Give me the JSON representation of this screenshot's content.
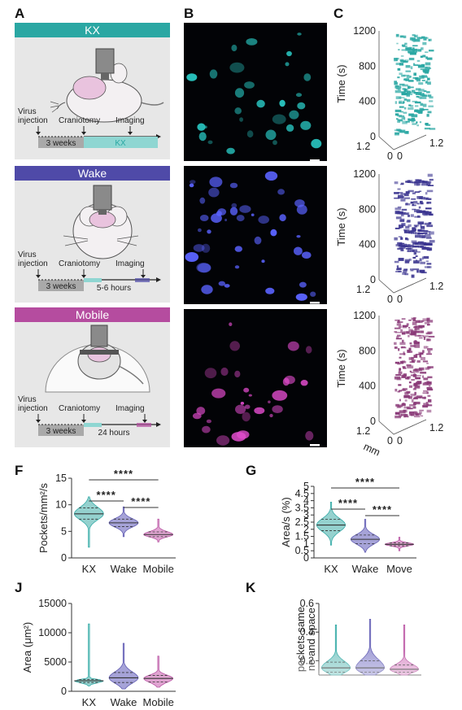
{
  "panel_labels": {
    "A": "A",
    "B": "B",
    "C": "C",
    "F": "F",
    "G": "G",
    "J": "J",
    "K": "K"
  },
  "colors": {
    "kx": "#2aa7a3",
    "wake": "#5a55b0",
    "mobile": "#b54c9f",
    "kx_violin": "#8fcfcc",
    "wake_violin": "#a29fd6",
    "mobile_violin": "#dfa0cf",
    "bg_panel": "#e7e7e7"
  },
  "schematics": [
    {
      "title": "KX",
      "bar_color": "#2aa7a3",
      "virus": "Virus\ninjection",
      "craniotomy": "Craniotomy",
      "imaging": "Imaging",
      "gap": "3 weeks",
      "period": "KX",
      "icon": "mouse-anesthetized-icon"
    },
    {
      "title": "Wake",
      "bar_color": "#4f4aa8",
      "virus": "Virus\ninjection",
      "craniotomy": "Craniotomy",
      "imaging": "Imaging",
      "gap": "3 weeks",
      "period": "5-6 hours",
      "icon": "mouse-awake-icon"
    },
    {
      "title": "Mobile",
      "bar_color": "#b54c9f",
      "virus": "Virus\ninjection",
      "craniotomy": "Craniotomy",
      "imaging": "Imaging",
      "gap": "3 weeks",
      "period": "24 hours",
      "icon": "mouse-on-ball-icon"
    }
  ],
  "chart_data": [
    {
      "panel": "C",
      "type": "scatter",
      "series": [
        {
          "color": "#2aa7a3"
        }
      ],
      "ylabel": "Time (s)",
      "zlim": [
        0,
        1200
      ],
      "zticks": [
        "0",
        "400",
        "800",
        "1200"
      ],
      "x_ticks": [
        "1.2",
        "0",
        "0",
        "1.2"
      ],
      "xlabel": ""
    },
    {
      "panel": "C",
      "type": "scatter",
      "series": [
        {
          "color": "#3b3590"
        }
      ],
      "ylabel": "Time (s)",
      "zlim": [
        0,
        1200
      ],
      "zticks": [
        "0",
        "400",
        "800",
        "1200"
      ],
      "x_ticks": [
        "1.2",
        "0",
        "0",
        "1.2"
      ],
      "xlabel": ""
    },
    {
      "panel": "C",
      "type": "scatter",
      "series": [
        {
          "color": "#8a3a78"
        }
      ],
      "ylabel": "Time (s)",
      "zlim": [
        0,
        1200
      ],
      "zticks": [
        "0",
        "400",
        "800",
        "1200"
      ],
      "x_ticks": [
        "1.2",
        "0",
        "0",
        "1.2"
      ],
      "xlabel": "mm"
    },
    {
      "panel": "F",
      "type": "violin",
      "categories": [
        "KX",
        "Wake",
        "Mobile"
      ],
      "ylabel": "Pockets/mm²/s",
      "ylim": [
        0,
        15
      ],
      "yticks": [
        "0",
        "5",
        "10",
        "15"
      ],
      "series": [
        {
          "median": 8.3,
          "q1": 7.3,
          "q3": 9.4,
          "min": 2.0,
          "max": 11.5
        },
        {
          "median": 6.6,
          "q1": 5.9,
          "q3": 7.3,
          "min": 4.0,
          "max": 9.6
        },
        {
          "median": 4.4,
          "q1": 4.0,
          "q3": 4.9,
          "min": 3.0,
          "max": 7.3
        }
      ],
      "annotations": [
        {
          "from": 0,
          "to": 2,
          "text": "****"
        },
        {
          "from": 0,
          "to": 1,
          "text": "****"
        },
        {
          "from": 1,
          "to": 2,
          "text": "****"
        }
      ]
    },
    {
      "panel": "G",
      "type": "violin",
      "categories": [
        "KX",
        "Wake",
        "Move"
      ],
      "ylabel": "Area/s (%)",
      "ylim": [
        0,
        5
      ],
      "yticks": [
        "0",
        "0.5",
        "1",
        "1.5",
        "2",
        "2.5",
        "3",
        "3.5",
        "4",
        "4.5",
        "5"
      ],
      "series": [
        {
          "median": 2.3,
          "q1": 1.9,
          "q3": 2.7,
          "min": 0.9,
          "max": 3.9
        },
        {
          "median": 1.3,
          "q1": 1.0,
          "q3": 1.6,
          "min": 0.4,
          "max": 2.7
        },
        {
          "median": 0.95,
          "q1": 0.85,
          "q3": 1.05,
          "min": 0.5,
          "max": 1.45
        }
      ],
      "annotations": [
        {
          "from": 0,
          "to": 2,
          "text": "****"
        },
        {
          "from": 0,
          "to": 1,
          "text": "****"
        },
        {
          "from": 1,
          "to": 2,
          "text": "****"
        }
      ]
    },
    {
      "panel": "J",
      "type": "violin",
      "categories": [
        "KX",
        "Wake",
        "Mobile"
      ],
      "ylabel": "Area (μm²)",
      "ylim": [
        0,
        15000
      ],
      "yticks": [
        "0",
        "5000",
        "10000",
        "15000"
      ],
      "series": [
        {
          "median": 1800,
          "q1": 1500,
          "q3": 2000,
          "min": 900,
          "max": 11500
        },
        {
          "median": 2300,
          "q1": 1500,
          "q3": 3200,
          "min": 400,
          "max": 8200
        },
        {
          "median": 2200,
          "q1": 1600,
          "q3": 2700,
          "min": 700,
          "max": 6000
        }
      ]
    },
    {
      "panel": "K",
      "type": "violin",
      "categories": [
        "",
        "",
        ""
      ],
      "ylabel": "pockets same\nne and space",
      "ylim": [
        0.1,
        0.6
      ],
      "yticks": [
        "0.2",
        "0.4",
        "0.6"
      ],
      "series": [
        {
          "median": 0.15,
          "q1": 0.12,
          "q3": 0.19,
          "min": 0.1,
          "max": 0.45
        },
        {
          "median": 0.15,
          "q1": 0.12,
          "q3": 0.2,
          "min": 0.1,
          "max": 0.49
        },
        {
          "median": 0.14,
          "q1": 0.12,
          "q3": 0.17,
          "min": 0.1,
          "max": 0.45
        }
      ]
    }
  ]
}
